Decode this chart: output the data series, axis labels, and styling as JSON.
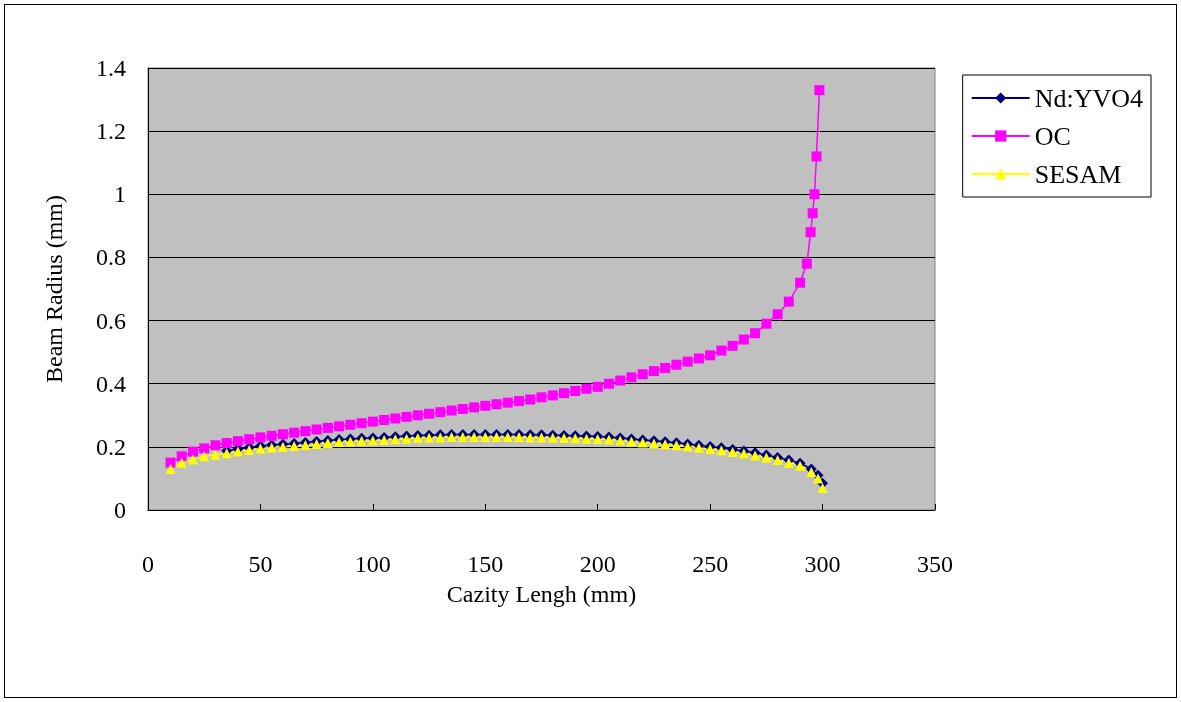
{
  "chart_data": {
    "type": "line",
    "xlabel": "Cazity Lengh (mm)",
    "ylabel": "Beam Radius (mm)",
    "xlim": [
      0,
      350
    ],
    "xticks": [
      0,
      50,
      100,
      150,
      200,
      250,
      300,
      350
    ],
    "ylim": [
      0,
      1.4
    ],
    "yticks": [
      0,
      0.2,
      0.4,
      0.6,
      0.8,
      1,
      1.2,
      1.4
    ],
    "grid": "y",
    "legend": "right",
    "series": [
      {
        "name": "Nd:YVO4",
        "color": "#000080",
        "marker": "diamond",
        "x": [
          35,
          40,
          45,
          50,
          55,
          60,
          65,
          70,
          75,
          80,
          85,
          90,
          95,
          100,
          105,
          110,
          115,
          120,
          125,
          130,
          135,
          140,
          145,
          150,
          155,
          160,
          165,
          170,
          175,
          180,
          185,
          190,
          195,
          200,
          205,
          210,
          215,
          220,
          225,
          230,
          235,
          240,
          245,
          250,
          255,
          260,
          265,
          270,
          275,
          280,
          285,
          290,
          295,
          298,
          300
        ],
        "values": [
          0.188,
          0.193,
          0.198,
          0.203,
          0.206,
          0.208,
          0.211,
          0.214,
          0.217,
          0.22,
          0.223,
          0.225,
          0.227,
          0.228,
          0.23,
          0.232,
          0.234,
          0.236,
          0.237,
          0.238,
          0.239,
          0.239,
          0.239,
          0.239,
          0.239,
          0.239,
          0.239,
          0.238,
          0.238,
          0.237,
          0.236,
          0.235,
          0.234,
          0.233,
          0.231,
          0.228,
          0.225,
          0.222,
          0.219,
          0.216,
          0.213,
          0.209,
          0.205,
          0.201,
          0.197,
          0.192,
          0.187,
          0.181,
          0.174,
          0.166,
          0.158,
          0.148,
          0.13,
          0.11,
          0.085
        ]
      },
      {
        "name": "OC",
        "color": "#ff00ff",
        "marker": "square",
        "x": [
          10,
          15,
          20,
          25,
          30,
          35,
          40,
          45,
          50,
          55,
          60,
          65,
          70,
          75,
          80,
          85,
          90,
          95,
          100,
          105,
          110,
          115,
          120,
          125,
          130,
          135,
          140,
          145,
          150,
          155,
          160,
          165,
          170,
          175,
          180,
          185,
          190,
          195,
          200,
          205,
          210,
          215,
          220,
          225,
          230,
          235,
          240,
          245,
          250,
          255,
          260,
          265,
          270,
          275,
          280,
          285,
          290,
          293,
          294.7,
          295.6,
          296.4,
          297.3,
          298.6
        ],
        "values": [
          0.15,
          0.17,
          0.185,
          0.195,
          0.205,
          0.212,
          0.218,
          0.224,
          0.23,
          0.235,
          0.24,
          0.245,
          0.25,
          0.255,
          0.26,
          0.265,
          0.27,
          0.275,
          0.28,
          0.285,
          0.29,
          0.295,
          0.3,
          0.305,
          0.31,
          0.315,
          0.32,
          0.325,
          0.33,
          0.335,
          0.34,
          0.345,
          0.35,
          0.357,
          0.363,
          0.37,
          0.377,
          0.384,
          0.39,
          0.4,
          0.41,
          0.42,
          0.43,
          0.44,
          0.45,
          0.46,
          0.47,
          0.48,
          0.49,
          0.505,
          0.52,
          0.54,
          0.56,
          0.59,
          0.62,
          0.66,
          0.72,
          0.78,
          0.88,
          0.94,
          1.0,
          1.12,
          1.33
        ]
      },
      {
        "name": "SESAM",
        "color": "#ffff00",
        "marker": "triangle",
        "x": [
          10,
          15,
          20,
          25,
          30,
          35,
          40,
          45,
          50,
          55,
          60,
          65,
          70,
          75,
          80,
          85,
          90,
          95,
          100,
          105,
          110,
          115,
          120,
          125,
          130,
          135,
          140,
          145,
          150,
          155,
          160,
          165,
          170,
          175,
          180,
          185,
          190,
          195,
          200,
          205,
          210,
          215,
          220,
          225,
          230,
          235,
          240,
          245,
          250,
          255,
          260,
          265,
          270,
          275,
          280,
          285,
          290,
          295,
          298,
          300
        ],
        "values": [
          0.13,
          0.15,
          0.16,
          0.17,
          0.175,
          0.18,
          0.185,
          0.19,
          0.195,
          0.198,
          0.2,
          0.203,
          0.206,
          0.209,
          0.212,
          0.215,
          0.217,
          0.219,
          0.22,
          0.222,
          0.224,
          0.226,
          0.228,
          0.229,
          0.23,
          0.231,
          0.231,
          0.231,
          0.231,
          0.231,
          0.231,
          0.231,
          0.23,
          0.23,
          0.229,
          0.228,
          0.227,
          0.226,
          0.225,
          0.223,
          0.22,
          0.217,
          0.214,
          0.211,
          0.208,
          0.205,
          0.201,
          0.197,
          0.193,
          0.189,
          0.184,
          0.179,
          0.173,
          0.166,
          0.158,
          0.15,
          0.14,
          0.12,
          0.1,
          0.07
        ]
      }
    ]
  }
}
